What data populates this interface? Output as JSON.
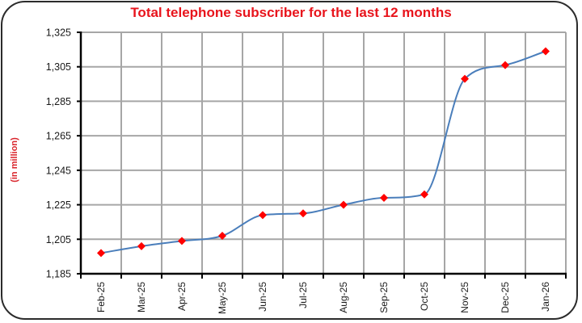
{
  "chart_data": {
    "type": "line",
    "title": "Total telephone subscriber for the last 12 months",
    "xlabel": "",
    "ylabel": "(in million)",
    "categories": [
      "Feb-25",
      "Mar-25",
      "Apr-25",
      "May-25",
      "Jun-25",
      "Jul-25",
      "Aug-25",
      "Sep-25",
      "Oct-25",
      "Nov-25",
      "Dec-25",
      "Jan-26"
    ],
    "series": [
      {
        "name": "Total telephone subscriber",
        "values": [
          1197,
          1201,
          1204,
          1207,
          1219,
          1220,
          1225,
          1229,
          1231,
          1298,
          1306,
          1314
        ],
        "line_color": "#4a7ebb",
        "marker": "diamond",
        "marker_color": "#ff0000"
      }
    ],
    "ylim": [
      1185,
      1325
    ],
    "yticks": [
      1185,
      1205,
      1225,
      1245,
      1265,
      1285,
      1305,
      1325
    ],
    "ytick_labels": [
      "1,185",
      "1,205",
      "1,225",
      "1,245",
      "1,265",
      "1,285",
      "1,305",
      "1,325"
    ],
    "grid": true,
    "legend": "none",
    "smooth": true
  },
  "colors": {
    "title": "#e8141c",
    "ylabel": "#d9232a",
    "grid": "#a6a6a6",
    "axis": "#000000",
    "frame": "#2b2b2b"
  }
}
